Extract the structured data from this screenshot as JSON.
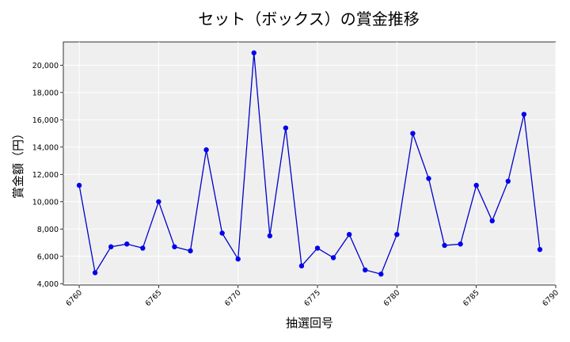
{
  "chart_data": {
    "type": "line",
    "title": "セット（ボックス）の賞金推移",
    "xlabel": "抽選回号",
    "ylabel": "賞金額（円）",
    "xlim": [
      6759,
      6790
    ],
    "ylim": [
      3900,
      21700
    ],
    "x_ticks": [
      6760,
      6765,
      6770,
      6775,
      6780,
      6785,
      6790
    ],
    "y_ticks": [
      4000,
      6000,
      8000,
      10000,
      12000,
      14000,
      16000,
      18000,
      20000
    ],
    "grid": true,
    "legend": "none",
    "colors": {
      "line": "#0000cc",
      "marker": "#0000ee",
      "plot_bg": "#efefef",
      "grid": "#ffffff"
    },
    "series": [
      {
        "x": [
          6760,
          6761,
          6762,
          6763,
          6764,
          6765,
          6766,
          6767,
          6768,
          6769,
          6770,
          6771,
          6772,
          6773,
          6774,
          6775,
          6776,
          6777,
          6778,
          6779,
          6780,
          6781,
          6782,
          6783,
          6784,
          6785,
          6786,
          6787,
          6788,
          6789
        ],
        "values": [
          11200,
          4800,
          6700,
          6900,
          6600,
          10000,
          6700,
          6400,
          13800,
          7700,
          5800,
          20900,
          7500,
          15400,
          5300,
          6600,
          5900,
          7600,
          5000,
          4700,
          7600,
          15000,
          11700,
          6800,
          6900,
          11200,
          8600,
          11500,
          16400,
          6500
        ]
      }
    ]
  }
}
